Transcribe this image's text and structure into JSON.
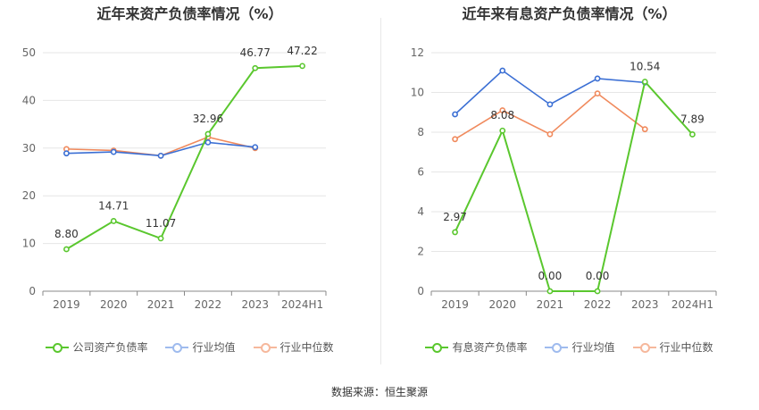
{
  "colors": {
    "company": "#5ac72e",
    "avg": "#3b6fd4",
    "median": "#f08a5d",
    "grid": "#e6e6e6",
    "axis": "#888888"
  },
  "source_label": "数据来源：恒生聚源",
  "chart_data": [
    {
      "type": "line",
      "title": "近年来资产负债率情况（%）",
      "categories": [
        "2019",
        "2020",
        "2021",
        "2022",
        "2023",
        "2024H1"
      ],
      "ylim": [
        0,
        50
      ],
      "yticks": [
        0,
        10,
        20,
        30,
        40,
        50
      ],
      "grid": true,
      "legend_position": "bottom",
      "series": [
        {
          "name": "公司资产负债率",
          "key": "company",
          "values": [
            8.8,
            14.71,
            11.07,
            32.96,
            46.77,
            47.22
          ],
          "labels": [
            "8.80",
            "14.71",
            "11.07",
            "32.96",
            "46.77",
            "47.22"
          ]
        },
        {
          "name": "行业均值",
          "key": "avg",
          "values": [
            28.9,
            29.2,
            28.4,
            31.2,
            30.2,
            null
          ]
        },
        {
          "name": "行业中位数",
          "key": "median",
          "values": [
            29.8,
            29.5,
            28.4,
            32.3,
            30.0,
            null
          ]
        }
      ]
    },
    {
      "type": "line",
      "title": "近年来有息资产负债率情况（%）",
      "categories": [
        "2019",
        "2020",
        "2021",
        "2022",
        "2023",
        "2024H1"
      ],
      "ylim": [
        0,
        12
      ],
      "yticks": [
        0,
        2,
        4,
        6,
        8,
        10,
        12
      ],
      "grid": true,
      "legend_position": "bottom",
      "series": [
        {
          "name": "有息资产负债率",
          "key": "company",
          "values": [
            2.97,
            8.08,
            0.0,
            0.0,
            10.54,
            7.89
          ],
          "labels": [
            "2.97",
            "8.08",
            "0.00",
            "0.00",
            "10.54",
            "7.89"
          ]
        },
        {
          "name": "行业均值",
          "key": "avg",
          "values": [
            8.9,
            11.1,
            9.4,
            10.7,
            10.5,
            null
          ]
        },
        {
          "name": "行业中位数",
          "key": "median",
          "values": [
            7.65,
            9.1,
            7.9,
            9.95,
            8.15,
            null
          ]
        }
      ]
    }
  ]
}
